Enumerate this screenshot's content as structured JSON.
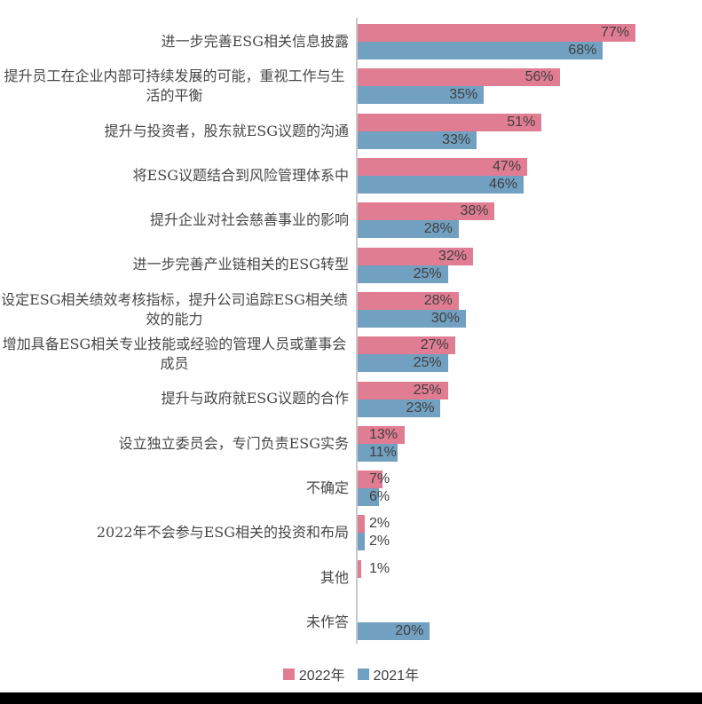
{
  "chart_data": {
    "type": "bar",
    "orientation": "horizontal",
    "title": "",
    "categories": [
      "进一步完善ESG相关信息披露",
      "提升员工在企业内部可持续发展的可能，重视工作与生活的平衡",
      "提升与投资者，股东就ESG议题的沟通",
      "将ESG议题结合到风险管理体系中",
      "提升企业对社会慈善事业的影响",
      "进一步完善产业链相关的ESG转型",
      "设定ESG相关绩效考核指标，提升公司追踪ESG相关绩效的能力",
      "增加具备ESG相关专业技能或经验的管理人员或董事会成员",
      "提升与政府就ESG议题的合作",
      "设立独立委员会，专门负责ESG实务",
      "不确定",
      "2022年不会参与ESG相关的投资和布局",
      "其他",
      "未作答"
    ],
    "series": [
      {
        "name": "2022年",
        "color": "#e07d92",
        "values": [
          77,
          56,
          51,
          47,
          38,
          32,
          28,
          27,
          25,
          13,
          7,
          2,
          1,
          null
        ]
      },
      {
        "name": "2021年",
        "color": "#72a0c1",
        "values": [
          68,
          35,
          33,
          46,
          28,
          25,
          30,
          25,
          23,
          11,
          6,
          2,
          null,
          20
        ]
      }
    ],
    "value_label_format": "{value}%",
    "xlim": [
      0,
      95
    ],
    "gridlines": false,
    "legend_position": "bottom",
    "axis_line_color": "#c9c9c9",
    "value_label_color": "#3f3f3f",
    "category_label_color": "#474747"
  }
}
